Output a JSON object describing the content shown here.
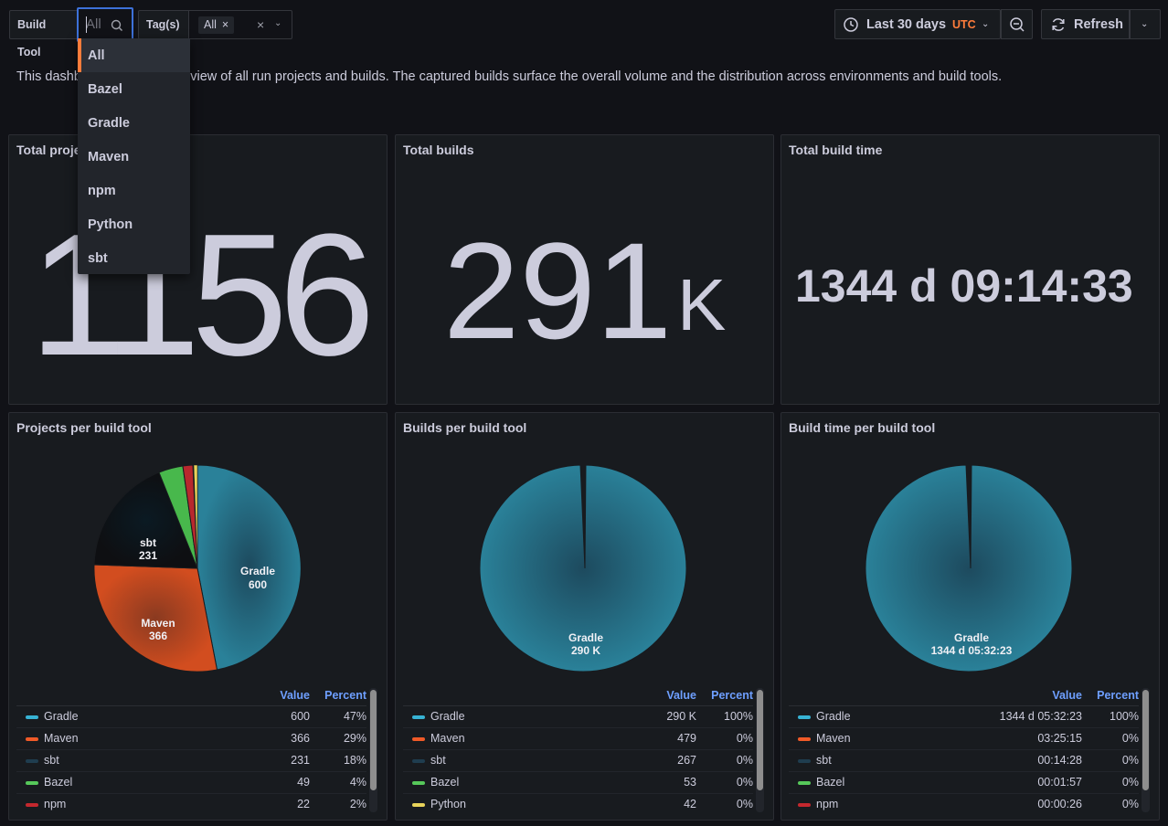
{
  "toolbar": {
    "build_tool_label": "Build Tool",
    "build_tool_value": "All",
    "tags_label": "Tag(s)",
    "tags_chip": "All",
    "chip_remove": "×",
    "clear": "×",
    "time_range": "Last 30 days",
    "timezone": "UTC",
    "refresh_label": "Refresh"
  },
  "description": "This dashboard gives an overview of all run projects and builds. The captured builds surface the overall volume and the distribution across environments and build tools.",
  "dropdown": {
    "options": [
      "All",
      "Bazel",
      "Gradle",
      "Maven",
      "npm",
      "Python",
      "sbt"
    ],
    "active": "All"
  },
  "stats": {
    "total_projects": {
      "title": "Total projects",
      "value": "1156"
    },
    "total_builds": {
      "title": "Total builds",
      "value": "291",
      "unit": "K"
    },
    "total_build_time": {
      "title": "Total build time",
      "value": "1344 d 09:14:33"
    }
  },
  "pies": {
    "projects": {
      "title": "Projects per build tool",
      "value_header": "Value",
      "percent_header": "Percent",
      "labels": [
        {
          "name": "Gradle",
          "value": "600"
        },
        {
          "name": "Maven",
          "value": "366"
        },
        {
          "name": "sbt",
          "value": "231"
        }
      ],
      "legend": [
        {
          "name": "Gradle",
          "value": "600",
          "percent": "47%",
          "color": "#37b3d4"
        },
        {
          "name": "Maven",
          "value": "366",
          "percent": "29%",
          "color": "#f05a28"
        },
        {
          "name": "sbt",
          "value": "231",
          "percent": "18%",
          "color": "#1f3d4f"
        },
        {
          "name": "Bazel",
          "value": "49",
          "percent": "4%",
          "color": "#56c85a"
        },
        {
          "name": "npm",
          "value": "22",
          "percent": "2%",
          "color": "#c4282e"
        }
      ]
    },
    "builds": {
      "title": "Builds per build tool",
      "value_header": "Value",
      "percent_header": "Percent",
      "labels": [
        {
          "name": "Gradle",
          "value": "290 K"
        }
      ],
      "legend": [
        {
          "name": "Gradle",
          "value": "290 K",
          "percent": "100%",
          "color": "#37b3d4"
        },
        {
          "name": "Maven",
          "value": "479",
          "percent": "0%",
          "color": "#f05a28"
        },
        {
          "name": "sbt",
          "value": "267",
          "percent": "0%",
          "color": "#1f3d4f"
        },
        {
          "name": "Bazel",
          "value": "53",
          "percent": "0%",
          "color": "#56c85a"
        },
        {
          "name": "Python",
          "value": "42",
          "percent": "0%",
          "color": "#e8d35a"
        }
      ]
    },
    "build_time": {
      "title": "Build time per build tool",
      "value_header": "Value",
      "percent_header": "Percent",
      "labels": [
        {
          "name": "Gradle",
          "value": "1344 d 05:32:23"
        }
      ],
      "legend": [
        {
          "name": "Gradle",
          "value": "1344 d 05:32:23",
          "percent": "100%",
          "color": "#37b3d4"
        },
        {
          "name": "Maven",
          "value": "03:25:15",
          "percent": "0%",
          "color": "#f05a28"
        },
        {
          "name": "sbt",
          "value": "00:14:28",
          "percent": "0%",
          "color": "#1f3d4f"
        },
        {
          "name": "Bazel",
          "value": "00:01:57",
          "percent": "0%",
          "color": "#56c85a"
        },
        {
          "name": "npm",
          "value": "00:00:26",
          "percent": "0%",
          "color": "#c4282e"
        }
      ]
    }
  }
}
